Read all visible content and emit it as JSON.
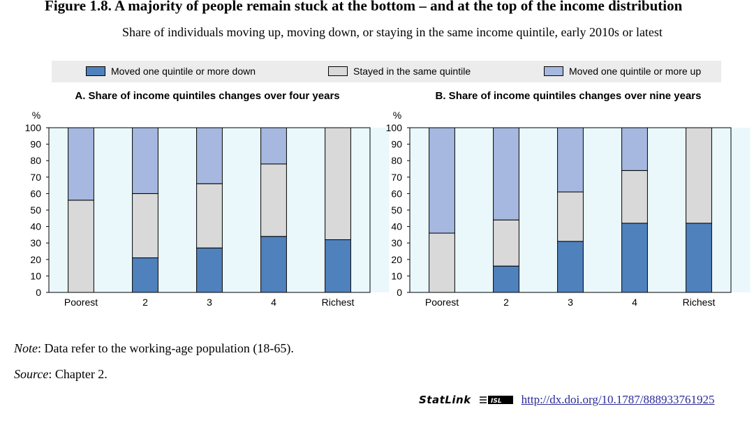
{
  "figure": {
    "title": "Figure 1.8. A majority of people remain stuck at the bottom – and at the top of the income distribution",
    "subtitle": "Share of individuals moving up, moving down, or staying in the same income quintile, early 2010s or latest"
  },
  "legend": {
    "items": [
      {
        "label": "Moved one quintile or more down",
        "color": "#4f81bd"
      },
      {
        "label": "Stayed in the same quintile",
        "color": "#d9d9d9"
      },
      {
        "label": "Moved one quintile or more up",
        "color": "#a6b8e0"
      }
    ]
  },
  "colors": {
    "down": "#4f81bd",
    "same": "#d9d9d9",
    "up": "#a6b8e0",
    "band": "#eaf8fb"
  },
  "chart_data": [
    {
      "type": "bar",
      "stacked": true,
      "title": "A. Share of income quintiles changes over four years",
      "ylabel": "%",
      "ylim": [
        0,
        100
      ],
      "yticks": [
        0,
        10,
        20,
        30,
        40,
        50,
        60,
        70,
        80,
        90,
        100
      ],
      "categories": [
        "Poorest",
        "2",
        "3",
        "4",
        "Richest"
      ],
      "series": [
        {
          "name": "Moved one quintile or more down",
          "values": [
            0,
            21,
            27,
            34,
            32
          ]
        },
        {
          "name": "Stayed in the same quintile",
          "values": [
            56,
            39,
            39,
            44,
            68
          ]
        },
        {
          "name": "Moved one quintile or more up",
          "values": [
            44,
            40,
            34,
            22,
            0
          ]
        }
      ]
    },
    {
      "type": "bar",
      "stacked": true,
      "title": "B. Share of income quintiles changes over  nine years",
      "ylabel": "%",
      "ylim": [
        0,
        100
      ],
      "yticks": [
        0,
        10,
        20,
        30,
        40,
        50,
        60,
        70,
        80,
        90,
        100
      ],
      "categories": [
        "Poorest",
        "2",
        "3",
        "4",
        "Richest"
      ],
      "series": [
        {
          "name": "Moved one quintile or more down",
          "values": [
            0,
            16,
            31,
            42,
            42
          ]
        },
        {
          "name": "Stayed in the same quintile",
          "values": [
            36,
            28,
            30,
            32,
            58
          ]
        },
        {
          "name": "Moved one quintile or more up",
          "values": [
            64,
            56,
            39,
            26,
            0
          ]
        }
      ]
    }
  ],
  "note": {
    "label": "Note",
    "text": ": Data refer to the working-age population (18-65)."
  },
  "source": {
    "label": "Source",
    "text": ": Chapter 2."
  },
  "statlink": {
    "brand": "StatLink",
    "url": "http://dx.doi.org/10.1787/888933761925"
  }
}
